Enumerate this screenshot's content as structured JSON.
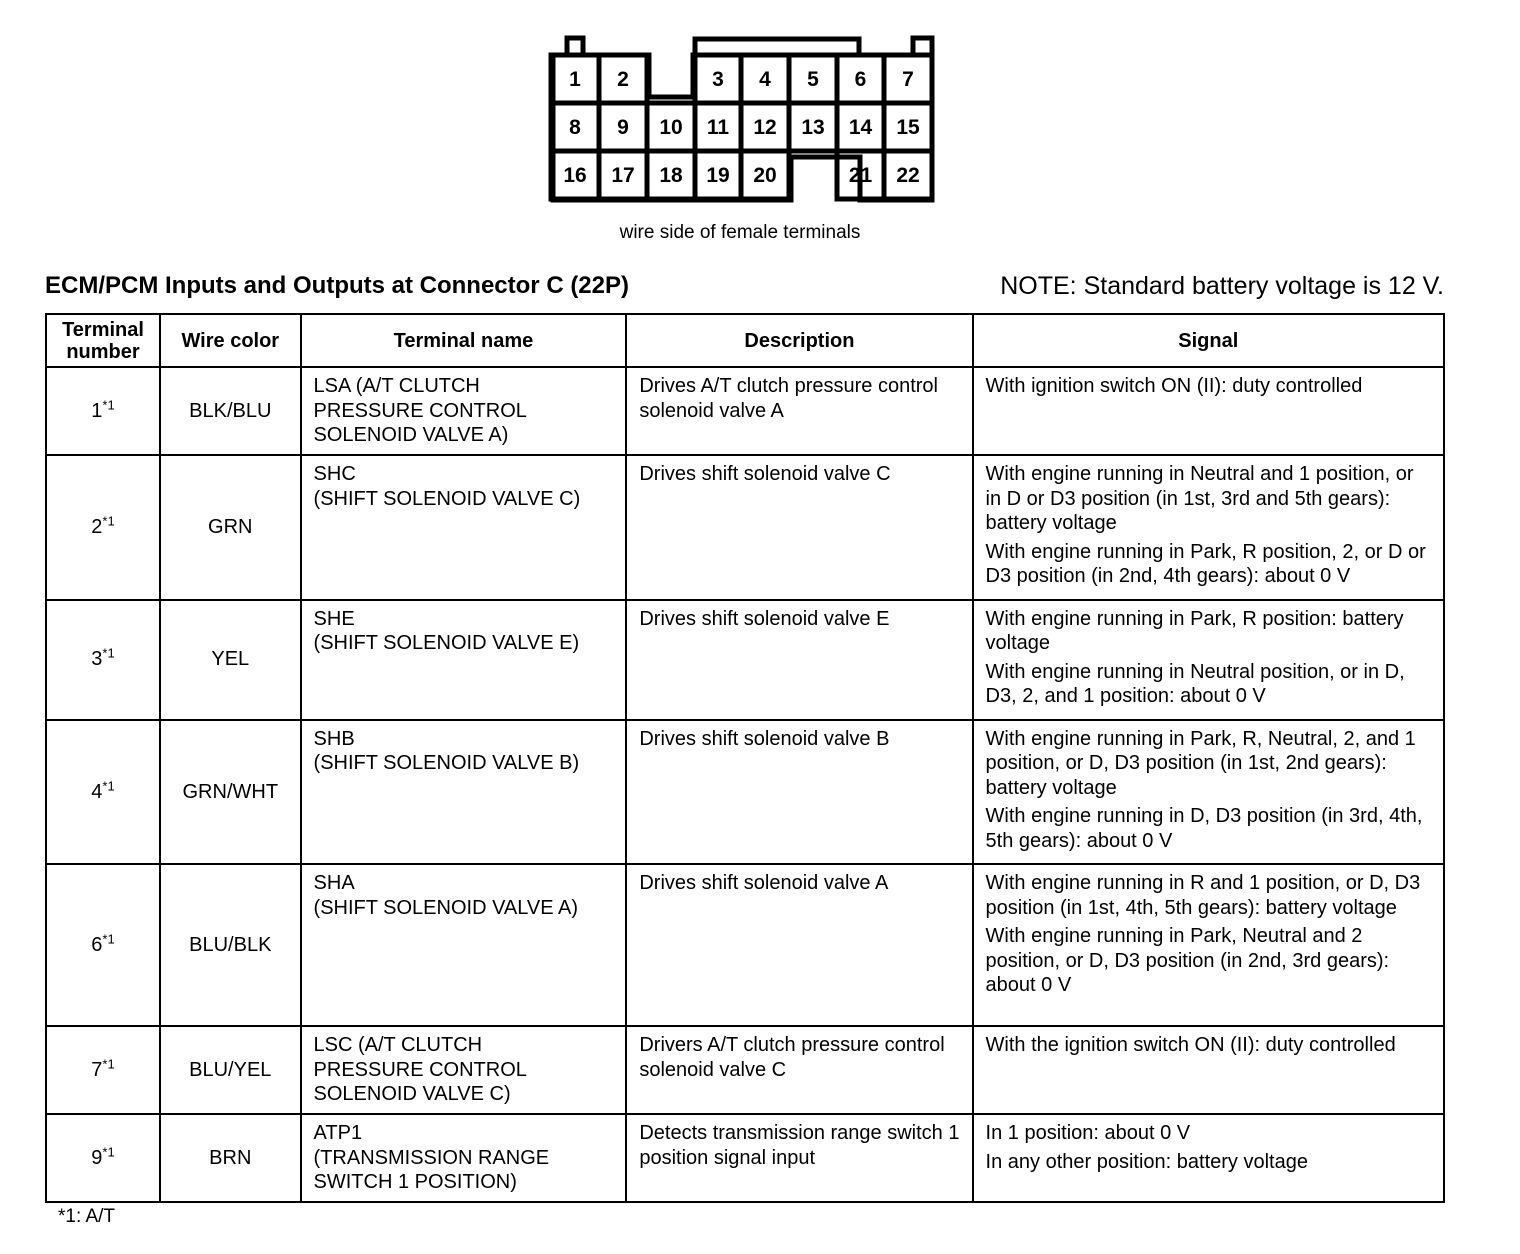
{
  "connector": {
    "rows": [
      [
        "1",
        "2",
        "",
        "3",
        "4",
        "5",
        "6",
        "7"
      ],
      [
        "8",
        "9",
        "10",
        "11",
        "12",
        "13",
        "14",
        "15"
      ],
      [
        "16",
        "17",
        "18",
        "19",
        "20",
        "",
        "21",
        "22"
      ]
    ],
    "caption": "wire side of female terminals"
  },
  "title": "ECM/PCM Inputs and Outputs at Connector C (22P)",
  "note": "NOTE: Standard battery voltage is 12 V.",
  "table": {
    "headers": [
      "Terminal number",
      "Wire color",
      "Terminal name",
      "Description",
      "Signal"
    ],
    "rows": [
      {
        "terminal": "1",
        "mark": "*1",
        "wire": "BLK/BLU",
        "name": [
          "LSA (A/T CLUTCH",
          "PRESSURE CONTROL",
          "SOLENOID VALVE A)"
        ],
        "description": "Drives A/T clutch pressure control solenoid valve A",
        "signal": [
          "With ignition switch ON (II): duty controlled"
        ]
      },
      {
        "terminal": "2",
        "mark": "*1",
        "wire": "GRN",
        "name": [
          "SHC",
          "(SHIFT SOLENOID VALVE C)"
        ],
        "description": "Drives shift solenoid valve C",
        "signal": [
          "With engine running in Neutral and 1 position, or in D or D3 position (in 1st, 3rd and 5th gears): battery voltage",
          "With engine running in Park, R position, 2, or D or D3 position (in 2nd, 4th gears): about 0 V"
        ]
      },
      {
        "terminal": "3",
        "mark": "*1",
        "wire": "YEL",
        "name": [
          "SHE",
          "(SHIFT SOLENOID VALVE E)"
        ],
        "description": "Drives shift solenoid valve E",
        "signal": [
          "With engine running in Park, R position: battery voltage",
          "With engine running in Neutral position, or in D, D3, 2, and 1 position: about 0 V"
        ]
      },
      {
        "terminal": "4",
        "mark": "*1",
        "wire": "GRN/WHT",
        "name": [
          "SHB",
          "(SHIFT SOLENOID VALVE B)"
        ],
        "description": "Drives shift solenoid valve B",
        "signal": [
          "With engine running in Park, R, Neutral, 2, and 1 position, or D, D3 position (in 1st, 2nd gears): battery voltage",
          "With engine running in D, D3 position (in 3rd, 4th, 5th gears): about 0 V"
        ]
      },
      {
        "terminal": "6",
        "mark": "*1",
        "wire": "BLU/BLK",
        "name": [
          "SHA",
          "(SHIFT SOLENOID VALVE A)"
        ],
        "description": "Drives shift solenoid valve A",
        "signal": [
          "With engine running in R and 1 position, or D, D3 position (in 1st, 4th, 5th gears): battery voltage",
          "With engine running in Park, Neutral and 2 position, or D, D3 position (in 2nd, 3rd gears): about 0 V"
        ]
      },
      {
        "terminal": "7",
        "mark": "*1",
        "wire": "BLU/YEL",
        "name": [
          "LSC (A/T CLUTCH",
          "PRESSURE CONTROL",
          "SOLENOID VALVE C)"
        ],
        "description": "Drivers A/T clutch pressure control solenoid valve C",
        "signal": [
          "With the ignition switch ON (II): duty controlled"
        ]
      },
      {
        "terminal": "9",
        "mark": "*1",
        "wire": "BRN",
        "name": [
          "ATP1",
          "(TRANSMISSION RANGE",
          "SWITCH 1 POSITION)"
        ],
        "description": "Detects transmission range switch 1 position signal input",
        "signal": [
          "In 1 position: about 0 V",
          "In any other position: battery voltage"
        ]
      }
    ]
  },
  "footnote": "*1:  A/T"
}
